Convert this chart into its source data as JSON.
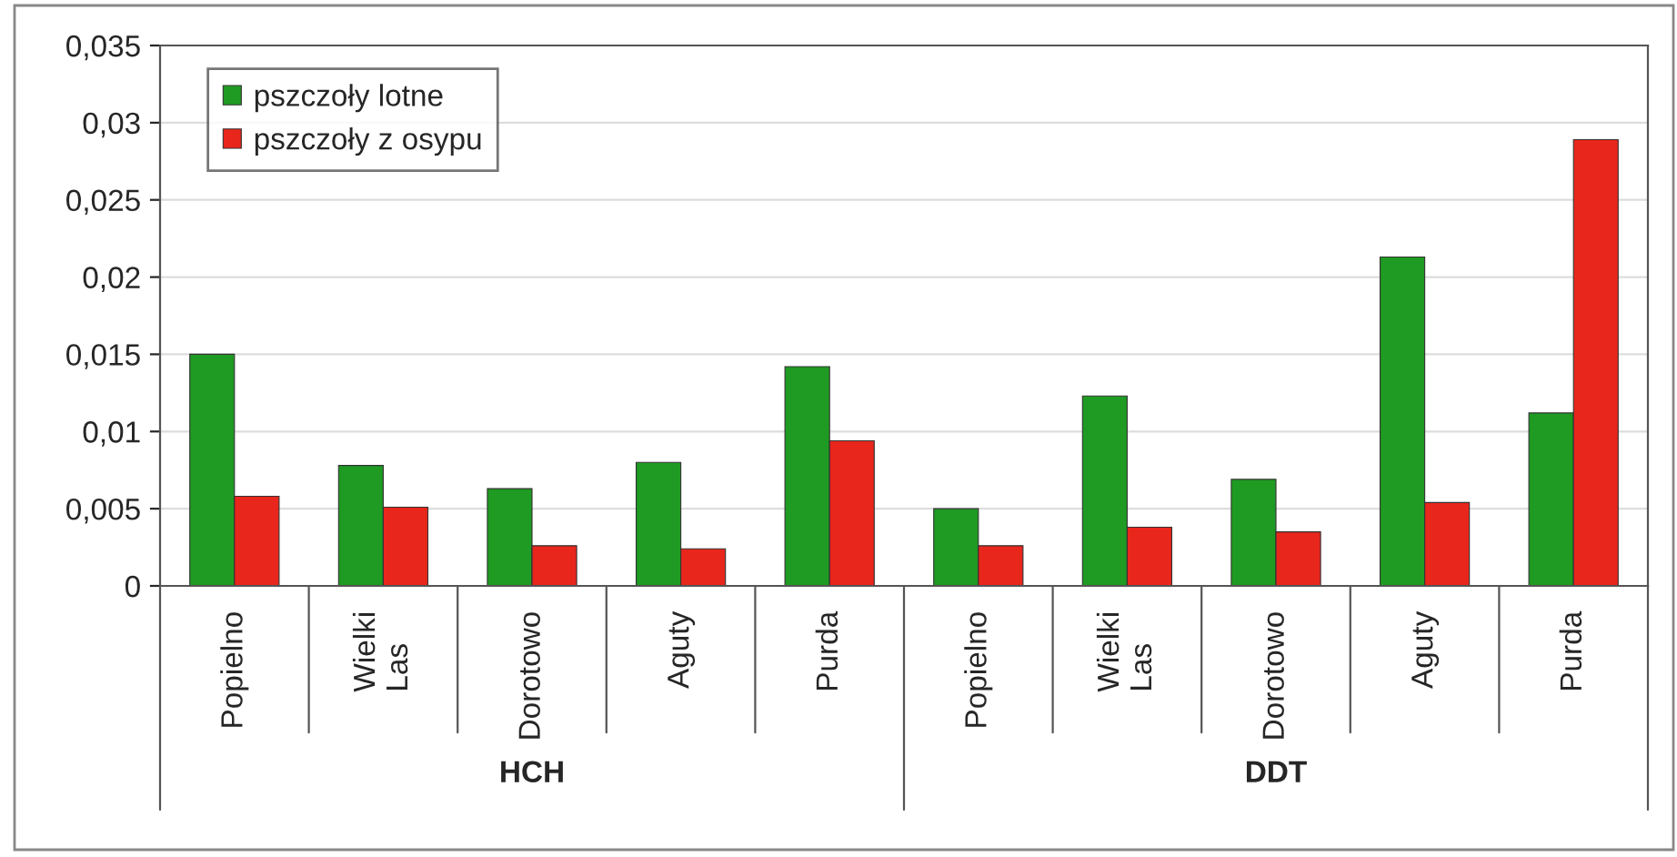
{
  "chart_data": {
    "type": "bar",
    "categories": [
      "Popielno",
      "Wielki Las",
      "Dorotowo",
      "Aguty",
      "Purda",
      "Popielno",
      "Wielki Las",
      "Dorotowo",
      "Aguty",
      "Purda"
    ],
    "series": [
      {
        "name": "pszczoły lotne",
        "color": "#1f9a22",
        "values": [
          0.015,
          0.0078,
          0.0063,
          0.008,
          0.0142,
          0.005,
          0.0123,
          0.0069,
          0.0213,
          0.0112
        ]
      },
      {
        "name": "pszczoły z osypu",
        "color": "#e8261c",
        "values": [
          0.0058,
          0.0051,
          0.0026,
          0.0024,
          0.0094,
          0.0026,
          0.0038,
          0.0035,
          0.0054,
          0.0289
        ]
      }
    ],
    "ylim": [
      0,
      0.035
    ],
    "yticks": [
      {
        "value": 0,
        "label": "0"
      },
      {
        "value": 0.005,
        "label": "0,005"
      },
      {
        "value": 0.01,
        "label": "0,01"
      },
      {
        "value": 0.015,
        "label": "0,015"
      },
      {
        "value": 0.02,
        "label": "0,02"
      },
      {
        "value": 0.025,
        "label": "0,025"
      },
      {
        "value": 0.03,
        "label": "0,03"
      },
      {
        "value": 0.035,
        "label": "0,035"
      }
    ],
    "annotations": [
      "HCH",
      "DDT"
    ],
    "grid": "y",
    "legend": "top left"
  }
}
